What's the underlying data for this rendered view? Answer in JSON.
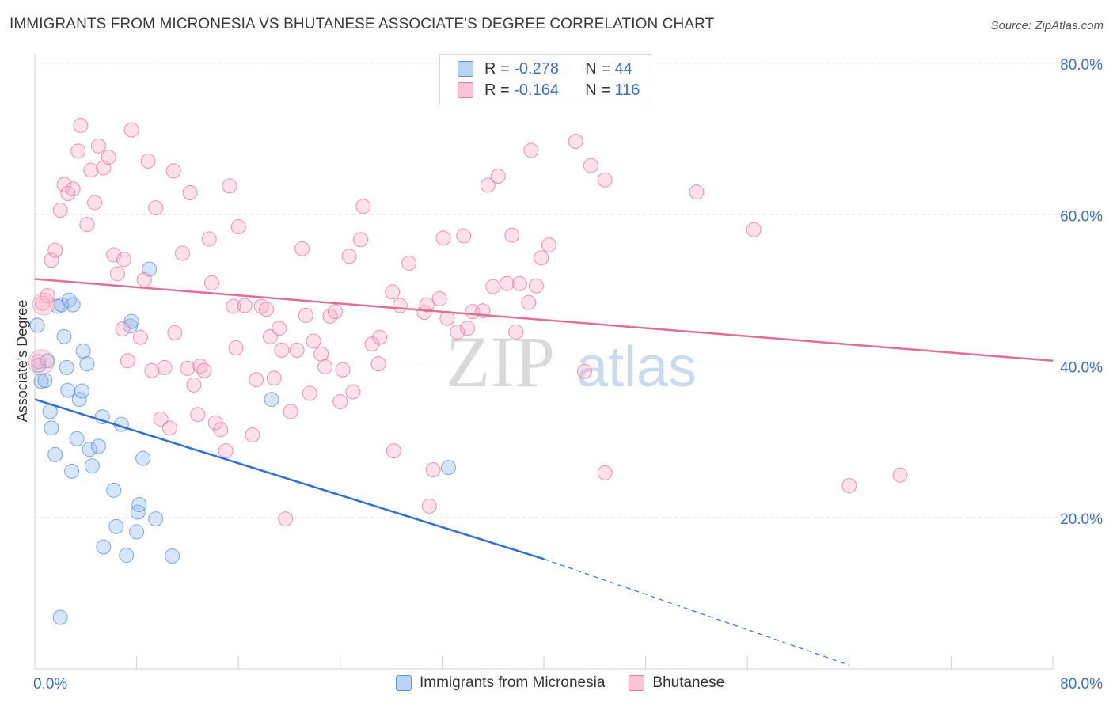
{
  "header": {
    "title": "IMMIGRANTS FROM MICRONESIA VS BHUTANESE ASSOCIATE'S DEGREE CORRELATION CHART",
    "source": "Source: ZipAtlas.com"
  },
  "legend": {
    "r_label": "R =",
    "n_label": "N =",
    "rows": [
      {
        "r": "-0.278",
        "n": "44",
        "color": "#5b93d9"
      },
      {
        "r": "-0.164",
        "n": "116",
        "color": "#e7789c"
      }
    ]
  },
  "bottom_legend": [
    "Immigrants from Micronesia",
    "Bhutanese"
  ],
  "watermark": {
    "zip": "ZIP",
    "atlas": "atlas"
  },
  "chart_data": {
    "type": "scatter",
    "ylabel": "Associate's Degree",
    "xlim": [
      0,
      80
    ],
    "ylim": [
      0,
      80
    ],
    "x_ticks": [
      "0.0%",
      "80.0%"
    ],
    "y_ticks": [
      {
        "v": 80,
        "label": "80.0%"
      },
      {
        "v": 60,
        "label": "60.0%"
      },
      {
        "v": 40,
        "label": "40.0%"
      },
      {
        "v": 20,
        "label": "20.0%"
      }
    ],
    "grid": true,
    "series": [
      {
        "name": "Immigrants from Micronesia",
        "color": "#5b93d9",
        "trend": {
          "x0": 0,
          "y0": 35.6,
          "x1": 40,
          "y1": 14.5,
          "dash_to_x": 64,
          "dash_to_y": 0.5
        },
        "points": [
          [
            0.2,
            45.4
          ],
          [
            0.3,
            40.1
          ],
          [
            0.5,
            38.0
          ],
          [
            1.0,
            40.7
          ],
          [
            0.8,
            38.1
          ],
          [
            1.2,
            34.0
          ],
          [
            1.3,
            31.8
          ],
          [
            1.6,
            28.3
          ],
          [
            1.8,
            47.9
          ],
          [
            2.1,
            48.1
          ],
          [
            2.3,
            43.9
          ],
          [
            2.5,
            39.8
          ],
          [
            2.7,
            48.7
          ],
          [
            2.6,
            36.8
          ],
          [
            2.9,
            26.1
          ],
          [
            3.0,
            48.1
          ],
          [
            3.3,
            30.4
          ],
          [
            3.5,
            35.6
          ],
          [
            3.7,
            36.7
          ],
          [
            3.8,
            42.0
          ],
          [
            4.1,
            40.3
          ],
          [
            4.3,
            29.0
          ],
          [
            4.5,
            26.8
          ],
          [
            5.0,
            29.4
          ],
          [
            5.3,
            33.3
          ],
          [
            5.4,
            16.1
          ],
          [
            6.2,
            23.6
          ],
          [
            6.4,
            18.8
          ],
          [
            6.8,
            32.3
          ],
          [
            7.2,
            15.0
          ],
          [
            7.5,
            45.3
          ],
          [
            7.6,
            45.9
          ],
          [
            8.0,
            18.1
          ],
          [
            8.1,
            20.7
          ],
          [
            8.2,
            21.7
          ],
          [
            8.5,
            27.8
          ],
          [
            9.0,
            52.8
          ],
          [
            9.5,
            19.8
          ],
          [
            10.8,
            14.9
          ],
          [
            18.6,
            35.6
          ],
          [
            32.5,
            26.6
          ],
          [
            2.0,
            6.8
          ]
        ]
      },
      {
        "name": "Bhutanese",
        "color": "#e7789c",
        "trend": {
          "x0": 0,
          "y0": 51.5,
          "x1": 80,
          "y1": 40.7
        },
        "points": [
          [
            0.3,
            40.6
          ],
          [
            0.6,
            48.3
          ],
          [
            1.0,
            49.3
          ],
          [
            1.3,
            54.0
          ],
          [
            1.6,
            55.3
          ],
          [
            2.0,
            60.6
          ],
          [
            2.3,
            64.0
          ],
          [
            2.6,
            62.8
          ],
          [
            3.0,
            63.4
          ],
          [
            3.4,
            68.4
          ],
          [
            3.6,
            71.8
          ],
          [
            4.1,
            58.7
          ],
          [
            4.4,
            65.9
          ],
          [
            4.7,
            61.6
          ],
          [
            5.0,
            69.1
          ],
          [
            5.4,
            66.2
          ],
          [
            5.8,
            67.6
          ],
          [
            6.2,
            54.7
          ],
          [
            6.5,
            52.2
          ],
          [
            6.9,
            44.9
          ],
          [
            7.0,
            54.1
          ],
          [
            7.3,
            40.7
          ],
          [
            7.6,
            71.2
          ],
          [
            8.3,
            43.8
          ],
          [
            8.6,
            51.4
          ],
          [
            8.9,
            67.1
          ],
          [
            9.2,
            39.4
          ],
          [
            9.5,
            60.9
          ],
          [
            9.9,
            33.0
          ],
          [
            10.2,
            39.8
          ],
          [
            10.6,
            31.8
          ],
          [
            10.9,
            65.8
          ],
          [
            11.0,
            44.4
          ],
          [
            11.6,
            54.9
          ],
          [
            12.0,
            39.7
          ],
          [
            12.2,
            62.9
          ],
          [
            12.5,
            37.5
          ],
          [
            12.8,
            33.6
          ],
          [
            13.0,
            40.0
          ],
          [
            13.3,
            39.4
          ],
          [
            13.7,
            56.8
          ],
          [
            13.9,
            51.0
          ],
          [
            14.2,
            32.5
          ],
          [
            14.6,
            31.6
          ],
          [
            15.0,
            28.8
          ],
          [
            15.3,
            63.8
          ],
          [
            15.6,
            47.9
          ],
          [
            15.8,
            42.4
          ],
          [
            16.0,
            58.4
          ],
          [
            16.5,
            48.0
          ],
          [
            17.1,
            30.9
          ],
          [
            17.4,
            38.2
          ],
          [
            17.8,
            47.9
          ],
          [
            18.2,
            47.5
          ],
          [
            18.5,
            43.9
          ],
          [
            18.8,
            38.4
          ],
          [
            19.2,
            45.0
          ],
          [
            19.4,
            42.1
          ],
          [
            19.7,
            19.8
          ],
          [
            20.1,
            34.0
          ],
          [
            20.6,
            42.1
          ],
          [
            21.0,
            55.5
          ],
          [
            21.3,
            46.7
          ],
          [
            21.6,
            36.4
          ],
          [
            21.9,
            43.3
          ],
          [
            22.5,
            41.6
          ],
          [
            22.8,
            39.9
          ],
          [
            23.2,
            46.6
          ],
          [
            23.6,
            47.2
          ],
          [
            24.0,
            35.3
          ],
          [
            24.2,
            39.5
          ],
          [
            24.7,
            54.5
          ],
          [
            25.0,
            36.6
          ],
          [
            25.6,
            56.7
          ],
          [
            25.8,
            61.1
          ],
          [
            26.5,
            42.9
          ],
          [
            27.0,
            40.3
          ],
          [
            27.1,
            43.8
          ],
          [
            28.1,
            49.8
          ],
          [
            28.2,
            28.8
          ],
          [
            28.7,
            48.0
          ],
          [
            29.4,
            53.6
          ],
          [
            30.6,
            47.1
          ],
          [
            30.8,
            48.1
          ],
          [
            31.0,
            21.5
          ],
          [
            31.3,
            26.3
          ],
          [
            31.8,
            48.9
          ],
          [
            32.1,
            56.9
          ],
          [
            32.4,
            46.3
          ],
          [
            33.2,
            44.5
          ],
          [
            33.7,
            57.2
          ],
          [
            34.0,
            45.0
          ],
          [
            34.4,
            47.2
          ],
          [
            35.2,
            47.3
          ],
          [
            35.6,
            63.9
          ],
          [
            36.0,
            50.5
          ],
          [
            36.4,
            65.1
          ],
          [
            37.1,
            50.9
          ],
          [
            37.5,
            57.3
          ],
          [
            37.8,
            44.5
          ],
          [
            38.1,
            50.9
          ],
          [
            38.8,
            48.4
          ],
          [
            39.0,
            68.5
          ],
          [
            39.4,
            50.6
          ],
          [
            39.8,
            54.3
          ],
          [
            40.4,
            56.0
          ],
          [
            42.5,
            69.7
          ],
          [
            43.2,
            39.3
          ],
          [
            43.7,
            66.5
          ],
          [
            44.8,
            64.6
          ],
          [
            44.8,
            25.9
          ],
          [
            52.0,
            63.0
          ],
          [
            56.5,
            58.0
          ],
          [
            64.0,
            24.2
          ],
          [
            68.0,
            25.6
          ]
        ]
      }
    ]
  }
}
